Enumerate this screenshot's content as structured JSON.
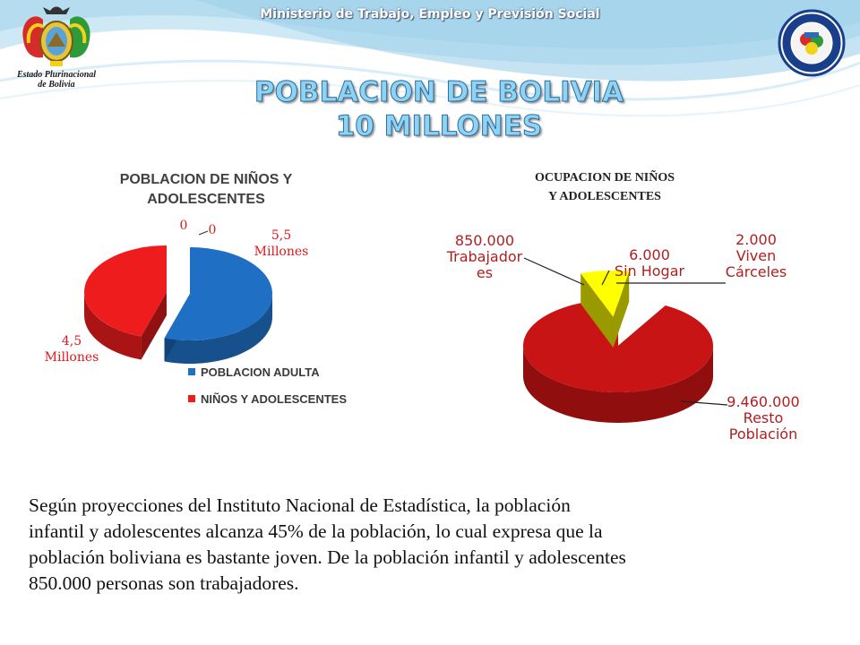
{
  "header": {
    "ministry": "Ministerio de Trabajo, Empleo y Previsión Social",
    "emblem_line1": "Estado Plurinacional",
    "emblem_line2": "de Bolivia"
  },
  "title": {
    "line1": "POBLACION  DE BOLIVIA",
    "line2": "10 MILLONES"
  },
  "colors": {
    "blue": "#1f6fc4",
    "red": "#ee1c1c",
    "dark_red": "#c81414",
    "yellow": "#ffff00",
    "title_fill": "#8fd3f4"
  },
  "chart_data": [
    {
      "type": "pie",
      "title_line1": "POBLACION DE NIÑOS Y",
      "title_line2": "ADOLESCENTES",
      "categories": [
        "POBLACION ADULTA",
        "NIÑOS Y ADOLESCENTES"
      ],
      "values": [
        5.5,
        4.5
      ],
      "label_blue_line1": "5,5",
      "label_blue_line2": "Millones",
      "label_red_line1": "4,5",
      "label_red_line2": "Millones",
      "zero_labels": [
        "0",
        "0"
      ],
      "legend": [
        "POBLACION ADULTA",
        "NIÑOS Y ADOLESCENTES"
      ],
      "legend_placement": "bottom"
    },
    {
      "type": "pie",
      "title_line1": "OCUPACION DE NIÑOS",
      "title_line2": "Y ADOLESCENTES",
      "categories": [
        "Trabajadores",
        "Sin Hogar",
        "Viven Cárceles",
        "Resto Población"
      ],
      "values": [
        850000,
        6000,
        2000,
        9460000
      ],
      "labels": [
        {
          "line1": "850.000",
          "line2": "Trabajador",
          "line3": "es"
        },
        {
          "line1": "6.000",
          "line2": "Sin Hogar"
        },
        {
          "line1": "2.000",
          "line2": "Viven",
          "line3": "Cárceles"
        },
        {
          "line1": "9.460.000",
          "line2": "Resto",
          "line3": "Población"
        }
      ]
    }
  ],
  "body": {
    "line1": "Según proyecciones del Instituto Nacional de Estadística, la población",
    "line2": "infantil y adolescentes alcanza  45% de la población, lo cual expresa que la",
    "line3": "población boliviana es bastante joven.  De la población infantil y adolescentes",
    "line4": "850.000 personas son trabajadores."
  }
}
